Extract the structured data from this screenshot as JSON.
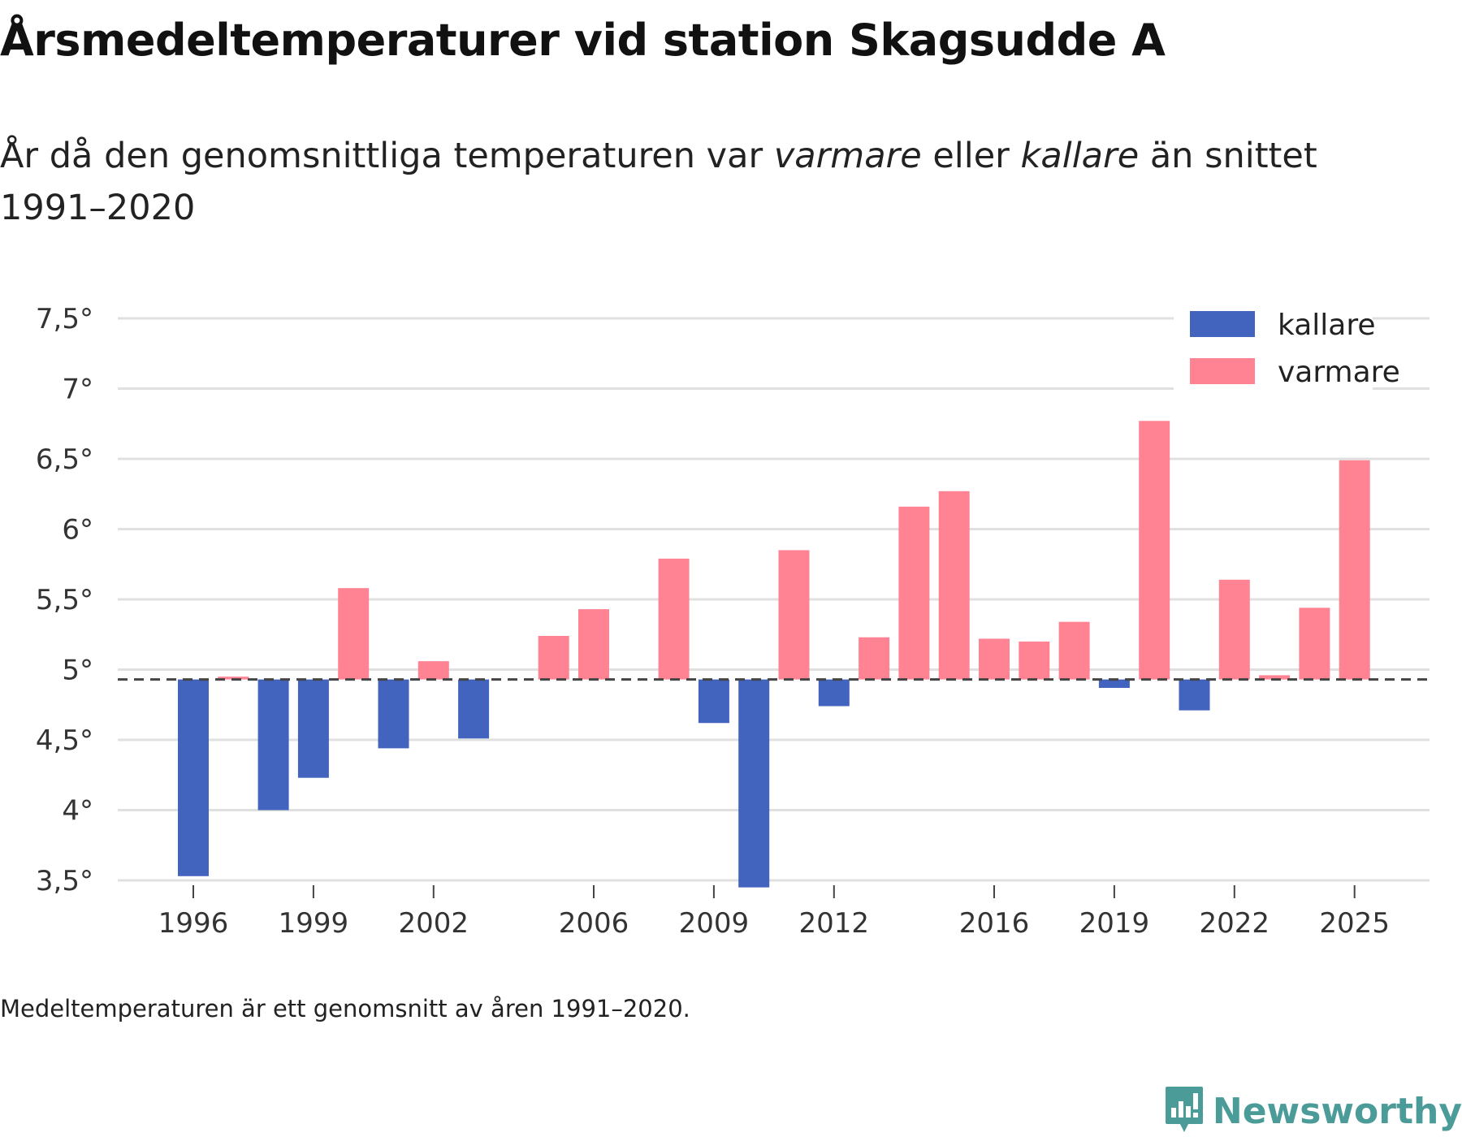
{
  "title": "Årsmedeltemperaturer vid station Skagsudde A",
  "subtitle": {
    "part1": "År då den genomsnittliga temperaturen var ",
    "warmer_word": "varmare",
    "part2": " eller ",
    "colder_word": "kallare",
    "part3": " än snittet 1991–2020"
  },
  "footnote": "Medeltemperaturen är ett genomsnitt av åren 1991–2020.",
  "brand": {
    "name": "Newsworthy",
    "icon": "newsworthy-logo-icon",
    "color": "#4b9b98"
  },
  "chart_data": {
    "type": "bar",
    "title": "Årsmedeltemperaturer vid station Skagsudde A",
    "xlabel": "",
    "ylabel": "",
    "ylim": [
      3.5,
      7.5
    ],
    "baseline": 4.93,
    "yticks": [
      {
        "value": 3.5,
        "label": "3,5°"
      },
      {
        "value": 4,
        "label": "4°"
      },
      {
        "value": 4.5,
        "label": "4,5°"
      },
      {
        "value": 5,
        "label": "5°"
      },
      {
        "value": 5.5,
        "label": "5,5°"
      },
      {
        "value": 6,
        "label": "6°"
      },
      {
        "value": 6.5,
        "label": "6,5°"
      },
      {
        "value": 7,
        "label": "7°"
      },
      {
        "value": 7.5,
        "label": "7,5°"
      }
    ],
    "xticks": [
      1996,
      1999,
      2002,
      2006,
      2009,
      2012,
      2016,
      2019,
      2022,
      2025
    ],
    "legend": {
      "placement": "top-right",
      "items": [
        {
          "name": "kallare",
          "color": "#4263be"
        },
        {
          "name": "varmare",
          "color": "#ff8393"
        }
      ]
    },
    "years": [
      1996,
      1997,
      1998,
      1999,
      2000,
      2001,
      2002,
      2003,
      2004,
      2005,
      2006,
      2007,
      2008,
      2009,
      2010,
      2011,
      2012,
      2013,
      2014,
      2015,
      2016,
      2017,
      2018,
      2019,
      2020,
      2021,
      2022,
      2023,
      2024,
      2025
    ],
    "values": [
      3.53,
      4.95,
      4.0,
      4.23,
      5.58,
      4.44,
      5.06,
      4.51,
      null,
      5.24,
      5.43,
      null,
      5.79,
      4.62,
      3.45,
      5.85,
      4.74,
      5.23,
      6.16,
      6.27,
      5.22,
      5.2,
      5.34,
      4.87,
      6.77,
      4.71,
      5.64,
      4.96,
      5.44,
      6.49
    ]
  }
}
